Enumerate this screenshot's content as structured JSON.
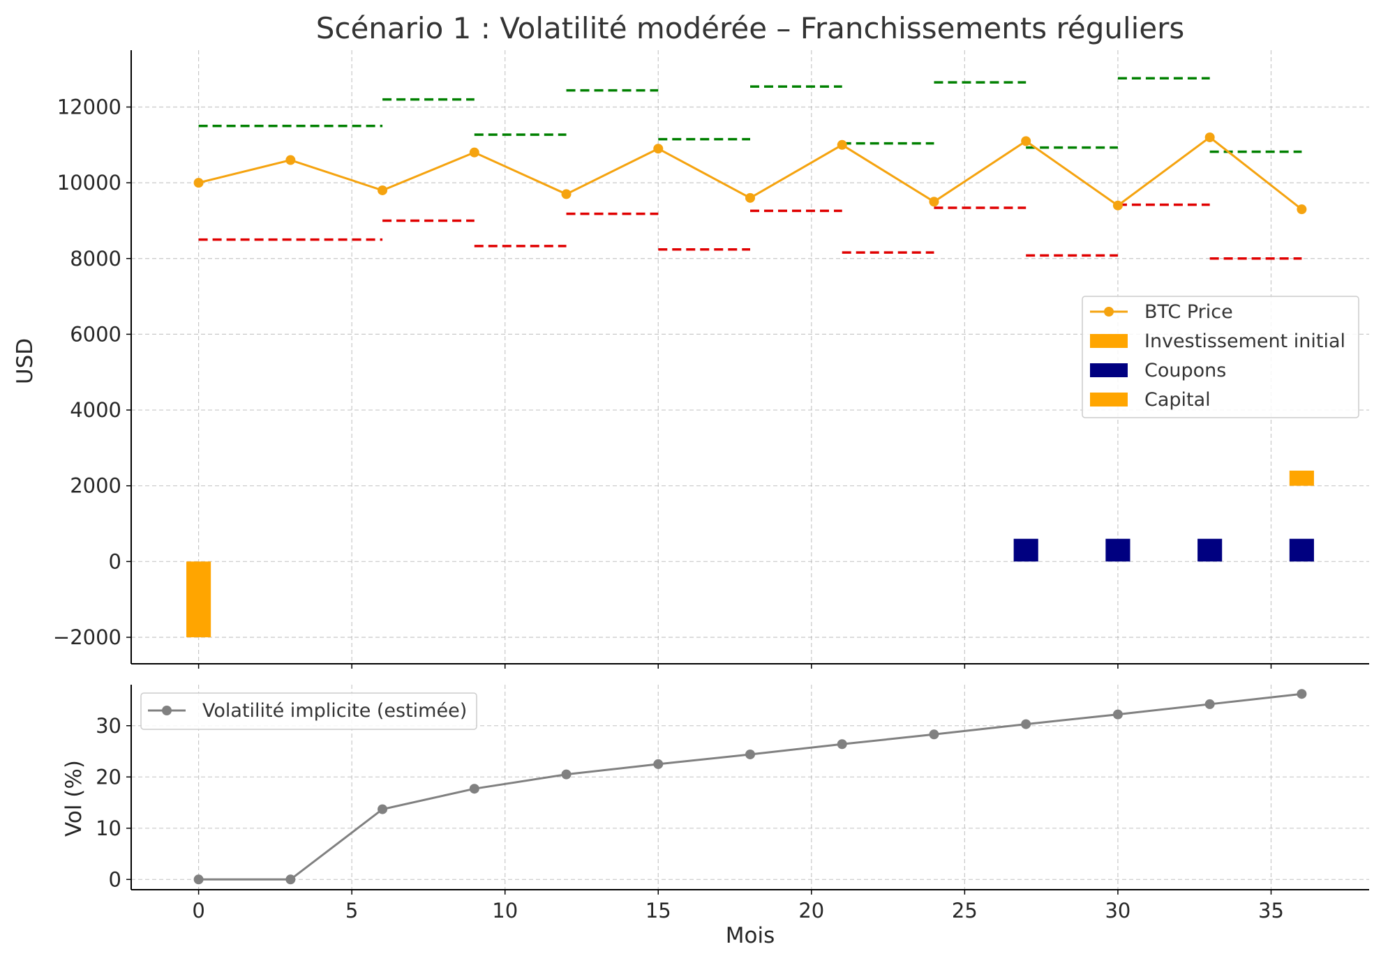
{
  "chart_data": [
    {
      "type": "line+bar",
      "title": "Scénario 1 : Volatilité modérée – Franchissements réguliers",
      "xlabel": "",
      "ylabel": "USD",
      "xlim": [
        -2.2,
        38.2
      ],
      "ylim": [
        -2700,
        13500
      ],
      "x_ticks": [
        0,
        5,
        10,
        15,
        20,
        25,
        30,
        35
      ],
      "y_ticks": [
        -2000,
        0,
        2000,
        4000,
        6000,
        8000,
        10000,
        12000
      ],
      "y_tick_labels": [
        "−2000",
        "0",
        "2000",
        "4000",
        "6000",
        "8000",
        "10000",
        "12000"
      ],
      "grid": true,
      "legend_position": "center-right",
      "series": [
        {
          "name": "BTC Price",
          "kind": "line",
          "color": "#f5a30f",
          "x": [
            0,
            3,
            6,
            9,
            12,
            15,
            18,
            21,
            24,
            27,
            30,
            33,
            36
          ],
          "y": [
            10000,
            10600,
            9800,
            10800,
            9700,
            10900,
            9600,
            11000,
            9500,
            11100,
            9400,
            11200,
            9300
          ]
        },
        {
          "name": "Investissement initial",
          "kind": "bar",
          "color": "#ffa500",
          "x": [
            0
          ],
          "y": [
            -2000
          ]
        },
        {
          "name": "Coupons",
          "kind": "bar",
          "color": "#000080",
          "x": [
            27,
            30,
            33,
            36
          ],
          "y": [
            600,
            600,
            600,
            600
          ]
        },
        {
          "name": "Capital",
          "kind": "bar",
          "color": "#ffa500",
          "x": [
            36
          ],
          "y": [
            400
          ],
          "bottom": 2000
        }
      ],
      "upper_barriers": {
        "color": "#008000",
        "segments": [
          {
            "x0": 0,
            "x1": 6,
            "y": 11500
          },
          {
            "x0": 6,
            "x1": 9,
            "y": 12200
          },
          {
            "x0": 9,
            "x1": 12,
            "y": 11270
          },
          {
            "x0": 12,
            "x1": 15,
            "y": 12440
          },
          {
            "x0": 15,
            "x1": 18,
            "y": 11150
          },
          {
            "x0": 18,
            "x1": 21,
            "y": 12540
          },
          {
            "x0": 21,
            "x1": 24,
            "y": 11040
          },
          {
            "x0": 24,
            "x1": 27,
            "y": 12650
          },
          {
            "x0": 27,
            "x1": 30,
            "y": 10930
          },
          {
            "x0": 30,
            "x1": 33,
            "y": 12760
          },
          {
            "x0": 33,
            "x1": 36,
            "y": 10820
          }
        ]
      },
      "lower_barriers": {
        "color": "#e00000",
        "segments": [
          {
            "x0": 0,
            "x1": 6,
            "y": 8500
          },
          {
            "x0": 6,
            "x1": 9,
            "y": 9000
          },
          {
            "x0": 9,
            "x1": 12,
            "y": 8330
          },
          {
            "x0": 12,
            "x1": 15,
            "y": 9180
          },
          {
            "x0": 15,
            "x1": 18,
            "y": 8240
          },
          {
            "x0": 18,
            "x1": 21,
            "y": 9260
          },
          {
            "x0": 21,
            "x1": 24,
            "y": 8160
          },
          {
            "x0": 24,
            "x1": 27,
            "y": 9340
          },
          {
            "x0": 27,
            "x1": 30,
            "y": 8080
          },
          {
            "x0": 30,
            "x1": 33,
            "y": 9420
          },
          {
            "x0": 33,
            "x1": 36,
            "y": 8000
          }
        ]
      }
    },
    {
      "type": "line",
      "title": "",
      "xlabel": "Mois",
      "ylabel": "Vol (%)",
      "xlim": [
        -2.2,
        38.2
      ],
      "ylim": [
        -2,
        38
      ],
      "x_ticks": [
        0,
        5,
        10,
        15,
        20,
        25,
        30,
        35
      ],
      "y_ticks": [
        0,
        10,
        20,
        30
      ],
      "grid": true,
      "legend_position": "upper-left",
      "series": [
        {
          "name": "Volatilité implicite (estimée)",
          "color": "#808080",
          "x": [
            0,
            3,
            6,
            9,
            12,
            15,
            18,
            21,
            24,
            27,
            30,
            33,
            36
          ],
          "y": [
            0,
            0,
            13.7,
            17.7,
            20.5,
            22.5,
            24.4,
            26.4,
            28.3,
            30.3,
            32.2,
            34.2,
            36.2
          ]
        }
      ]
    }
  ]
}
